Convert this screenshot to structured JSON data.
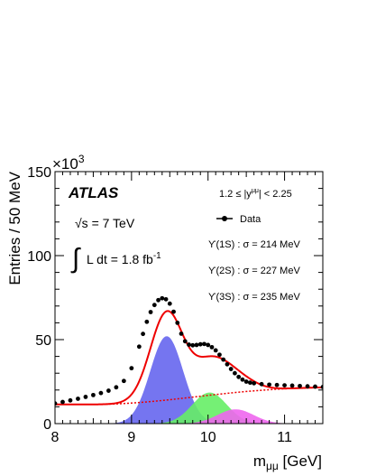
{
  "chart_data": {
    "type": "line",
    "title": "",
    "xlabel_main": "m",
    "xlabel_sub": "μμ",
    "xlabel_unit": " [GeV]",
    "ylabel": "Entries / 50 MeV",
    "y_multiplier_base": "×10",
    "y_multiplier_exp": "3",
    "xlim": [
      8,
      11.5
    ],
    "ylim": [
      0,
      150
    ],
    "x_ticks": [
      "8",
      "9",
      "10",
      "11"
    ],
    "x_tick_values": [
      8,
      9,
      10,
      11
    ],
    "y_ticks": [
      "0",
      "50",
      "100",
      "150"
    ],
    "y_tick_values": [
      0,
      50,
      100,
      150
    ],
    "experiment": "ATLAS",
    "energy_label": "√s = 7 TeV",
    "lumi_label_prefix": "L dt = 1.8 fb",
    "lumi_label_exp": "-1",
    "rapidity_label": "1.2 ≤ |y",
    "rapidity_sup": "μμ",
    "rapidity_label_end": "| < 2.25",
    "legend": [
      {
        "label": "Data",
        "kind": "marker"
      },
      {
        "label": "ϒ(1S) : σ = 214 MeV",
        "kind": "text"
      },
      {
        "label": "ϒ(2S) : σ = 227 MeV",
        "kind": "text"
      },
      {
        "label": "ϒ(3S) : σ = 235 MeV",
        "kind": "text"
      }
    ],
    "components": {
      "background": {
        "a": 11.4,
        "b": 10.7,
        "c": 0.25,
        "color": "#ee0000"
      },
      "peaks": [
        {
          "name": "ϒ(1S)",
          "mean": 9.46,
          "sigma": 0.214,
          "amp": 52,
          "color": "#6666ee"
        },
        {
          "name": "ϒ(2S)",
          "mean": 10.02,
          "sigma": 0.227,
          "amp": 18.5,
          "color": "#66ee66"
        },
        {
          "name": "ϒ(3S)",
          "mean": 10.36,
          "sigma": 0.235,
          "amp": 8.5,
          "color": "#ee66ee"
        }
      ]
    },
    "data_points": {
      "x": [
        8.0,
        8.1,
        8.2,
        8.3,
        8.4,
        8.5,
        8.6,
        8.7,
        8.8,
        8.9,
        9.0,
        9.1,
        9.15,
        9.2,
        9.25,
        9.3,
        9.35,
        9.4,
        9.45,
        9.5,
        9.55,
        9.6,
        9.65,
        9.7,
        9.75,
        9.8,
        9.85,
        9.9,
        9.95,
        10.0,
        10.05,
        10.1,
        10.15,
        10.2,
        10.25,
        10.3,
        10.35,
        10.4,
        10.45,
        10.5,
        10.55,
        10.6,
        10.7,
        10.8,
        10.9,
        11.0,
        11.1,
        11.2,
        11.3,
        11.4,
        11.5
      ],
      "y": [
        12.0,
        12.9,
        13.8,
        14.8,
        15.9,
        17.0,
        18.2,
        19.6,
        21.6,
        25.4,
        33.0,
        45.8,
        53.4,
        60.6,
        66.4,
        70.6,
        73.5,
        74.6,
        74.0,
        71.4,
        66.6,
        60.0,
        53.5,
        49.0,
        47.0,
        46.6,
        46.8,
        47.2,
        47.4,
        46.8,
        45.5,
        43.6,
        41.0,
        38.1,
        35.3,
        32.5,
        30.0,
        27.8,
        26.2,
        25.0,
        24.4,
        24.0,
        23.5,
        23.2,
        23.0,
        22.8,
        22.6,
        22.4,
        22.2,
        22.0,
        21.8
      ]
    }
  }
}
